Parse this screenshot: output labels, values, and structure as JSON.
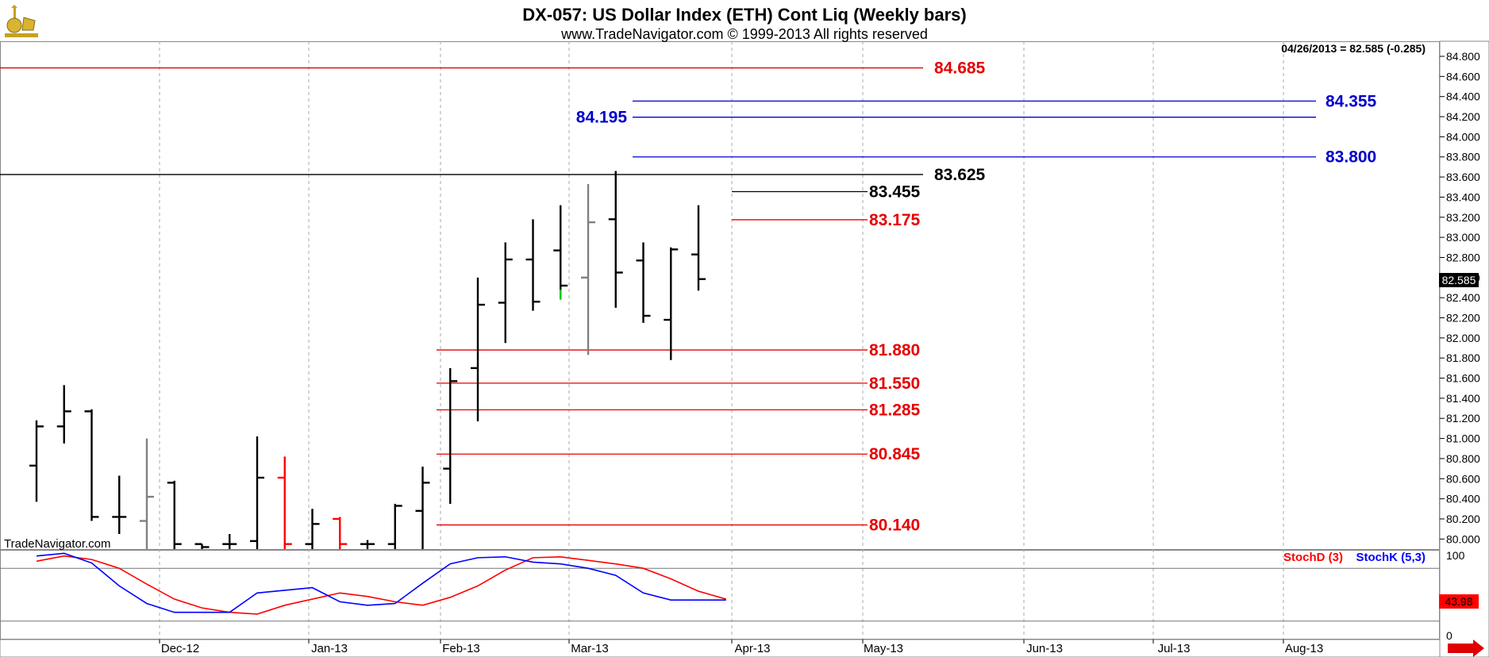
{
  "header": {
    "title": "DX-057:  US Dollar Index (ETH) Cont Liq  (Weekly bars)",
    "subtitle": "www.TradeNavigator.com © 1999-2013 All rights reserved",
    "last_bar": "04/26/2013 = 82.585 (-0.285)",
    "watermark": "TradeNavigator.com"
  },
  "colors": {
    "up_bar": "#000000",
    "inside_bar": "#808080",
    "red_bar": "#ff0000",
    "red_level": "#e60000",
    "blue_level": "#0000cc",
    "stoch_d": "#ff0000",
    "stoch_k": "#0000ff",
    "panel_bg": "#ffffff",
    "axis_bg": "#f0f0f0"
  },
  "chart_data": [
    {
      "type": "ohlc",
      "ylim": [
        79.9,
        84.95
      ],
      "y_ticks": [
        "84.800",
        "84.600",
        "84.400",
        "84.200",
        "84.000",
        "83.800",
        "83.600",
        "83.400",
        "83.200",
        "83.000",
        "82.800",
        "82.600",
        "82.400",
        "82.200",
        "82.000",
        "81.800",
        "81.600",
        "81.400",
        "81.200",
        "81.000",
        "80.800",
        "80.600",
        "80.400",
        "80.200",
        "80.000"
      ],
      "x_ticks": [
        "Dec-12",
        "Jan-13",
        "Feb-13",
        "Mar-13",
        "Apr-13",
        "May-13",
        "Jun-13",
        "Jul-13",
        "Aug-13"
      ],
      "last_price": "82.585",
      "bars": [
        {
          "w": 0,
          "o": 80.73,
          "h": 81.18,
          "l": 80.37,
          "c": 81.12,
          "color": "black"
        },
        {
          "w": 1,
          "o": 81.12,
          "h": 81.53,
          "l": 80.95,
          "c": 81.27,
          "color": "black"
        },
        {
          "w": 2,
          "o": 81.27,
          "h": 81.29,
          "l": 80.18,
          "c": 80.22,
          "color": "black"
        },
        {
          "w": 3,
          "o": 80.22,
          "h": 80.63,
          "l": 80.05,
          "c": 80.22,
          "color": "black"
        },
        {
          "w": 4,
          "o": 80.18,
          "h": 81.0,
          "l": 79.9,
          "c": 80.42,
          "color": "gray"
        },
        {
          "w": 5,
          "o": 80.56,
          "h": 80.58,
          "l": 79.9,
          "c": 79.95,
          "color": "black"
        },
        {
          "w": 6,
          "o": 79.95,
          "h": 79.95,
          "l": 79.9,
          "c": 79.92,
          "color": "black"
        },
        {
          "w": 7,
          "o": 79.95,
          "h": 80.05,
          "l": 79.9,
          "c": 79.95,
          "color": "black"
        },
        {
          "w": 8,
          "o": 79.98,
          "h": 81.02,
          "l": 79.9,
          "c": 80.61,
          "color": "black"
        },
        {
          "w": 9,
          "o": 80.61,
          "h": 80.82,
          "l": 79.9,
          "c": 79.95,
          "color": "red"
        },
        {
          "w": 10,
          "o": 79.95,
          "h": 80.3,
          "l": 79.9,
          "c": 80.15,
          "color": "black"
        },
        {
          "w": 11,
          "o": 80.2,
          "h": 80.22,
          "l": 79.9,
          "c": 79.95,
          "color": "red"
        },
        {
          "w": 12,
          "o": 79.95,
          "h": 79.99,
          "l": 79.9,
          "c": 79.95,
          "color": "black"
        },
        {
          "w": 13,
          "o": 79.95,
          "h": 80.35,
          "l": 79.9,
          "c": 80.33,
          "color": "black"
        },
        {
          "w": 14,
          "o": 80.28,
          "h": 80.72,
          "l": 79.9,
          "c": 80.56,
          "color": "black"
        },
        {
          "w": 15,
          "o": 80.7,
          "h": 81.7,
          "l": 80.35,
          "c": 81.57,
          "color": "black"
        },
        {
          "w": 16,
          "o": 81.7,
          "h": 82.6,
          "l": 81.17,
          "c": 82.33,
          "color": "black"
        },
        {
          "w": 17,
          "o": 82.35,
          "h": 82.95,
          "l": 81.95,
          "c": 82.78,
          "color": "black"
        },
        {
          "w": 18,
          "o": 82.78,
          "h": 83.18,
          "l": 82.27,
          "c": 82.36,
          "color": "black"
        },
        {
          "w": 19,
          "o": 82.87,
          "h": 83.32,
          "l": 82.4,
          "c": 82.52,
          "color": "black"
        },
        {
          "w": 20,
          "o": 82.6,
          "h": 83.53,
          "l": 81.83,
          "c": 83.15,
          "color": "gray"
        },
        {
          "w": 21,
          "o": 83.18,
          "h": 83.66,
          "l": 82.3,
          "c": 82.65,
          "color": "black"
        },
        {
          "w": 22,
          "o": 82.77,
          "h": 82.95,
          "l": 82.15,
          "c": 82.22,
          "color": "black"
        },
        {
          "w": 23,
          "o": 82.18,
          "h": 82.9,
          "l": 81.78,
          "c": 82.88,
          "color": "black"
        },
        {
          "w": 24,
          "o": 82.83,
          "h": 83.32,
          "l": 82.47,
          "c": 82.585,
          "color": "black"
        }
      ],
      "levels": [
        {
          "label": "84.685",
          "value": 84.685,
          "color": "red",
          "from": "start",
          "to": "wide"
        },
        {
          "label": "84.355",
          "value": 84.355,
          "color": "blue",
          "from": "mid",
          "to": "far"
        },
        {
          "label": "84.195",
          "value": 84.195,
          "color": "blue",
          "from": "mid",
          "to": "far"
        },
        {
          "label": "83.800",
          "value": 83.8,
          "color": "blue",
          "from": "mid",
          "to": "far"
        },
        {
          "label": "83.625",
          "value": 83.625,
          "color": "black",
          "from": "start",
          "to": "wide"
        },
        {
          "label": "83.455",
          "value": 83.455,
          "color": "black",
          "from": "near",
          "to": "short"
        },
        {
          "label": "83.175",
          "value": 83.175,
          "color": "red",
          "from": "near",
          "to": "short"
        },
        {
          "label": "81.880",
          "value": 81.88,
          "color": "red",
          "from": "feb",
          "to": "short"
        },
        {
          "label": "81.550",
          "value": 81.55,
          "color": "red",
          "from": "feb",
          "to": "short"
        },
        {
          "label": "81.285",
          "value": 81.285,
          "color": "red",
          "from": "feb",
          "to": "short"
        },
        {
          "label": "80.845",
          "value": 80.845,
          "color": "red",
          "from": "feb",
          "to": "short"
        },
        {
          "label": "80.140",
          "value": 80.14,
          "color": "red",
          "from": "feb",
          "to": "short"
        }
      ]
    },
    {
      "type": "line",
      "ylim": [
        0,
        100
      ],
      "y_ticks": [
        "100",
        "0"
      ],
      "legend": [
        "StochD (3)",
        "StochK (5,3)"
      ],
      "last_value": "43.98",
      "series": [
        {
          "name": "StochD (3)",
          "color": "red",
          "values": [
            88,
            94,
            90,
            80,
            62,
            45,
            35,
            30,
            28,
            38,
            45,
            52,
            48,
            42,
            38,
            47,
            60,
            78,
            92,
            93,
            89,
            85,
            80,
            68,
            54,
            45
          ]
        },
        {
          "name": "StochK (5,3)",
          "color": "blue",
          "values": [
            94,
            97,
            86,
            60,
            40,
            30,
            30,
            30,
            52,
            55,
            58,
            42,
            38,
            40,
            63,
            85,
            92,
            93,
            87,
            85,
            80,
            72,
            52,
            44,
            43.98,
            43.98
          ]
        }
      ]
    }
  ]
}
